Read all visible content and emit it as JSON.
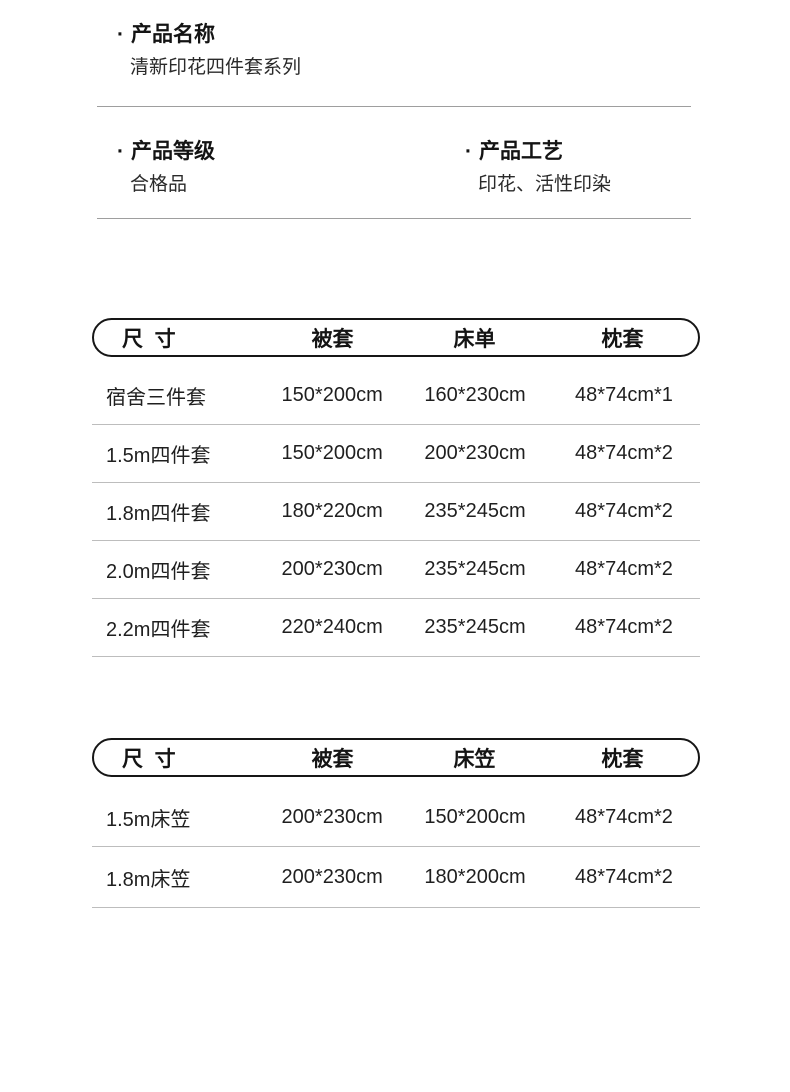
{
  "colors": {
    "page_bg": "#ffffff",
    "heading_text": "#141414",
    "body_text": "#2a2a2a",
    "table_border": "#161616",
    "section_divider": "#9e9e9e",
    "row_divider": "#bdbdbd"
  },
  "sections": {
    "product_name": {
      "bullet": "·",
      "label": "产品名称",
      "value": "清新印花四件套系列"
    },
    "product_grade": {
      "bullet": "·",
      "label": "产品等级",
      "value": "合格品"
    },
    "product_craft": {
      "bullet": "·",
      "label": "产品工艺",
      "value": "印花、活性印染"
    }
  },
  "size_table_1": {
    "headers": [
      "尺  寸",
      "被套",
      "床单",
      "枕套"
    ],
    "rows": [
      [
        "宿舍三件套",
        "150*200cm",
        "160*230cm",
        "48*74cm*1"
      ],
      [
        "1.5m四件套",
        "150*200cm",
        "200*230cm",
        "48*74cm*2"
      ],
      [
        "1.8m四件套",
        "180*220cm",
        "235*245cm",
        "48*74cm*2"
      ],
      [
        "2.0m四件套",
        "200*230cm",
        "235*245cm",
        "48*74cm*2"
      ],
      [
        "2.2m四件套",
        "220*240cm",
        "235*245cm",
        "48*74cm*2"
      ]
    ]
  },
  "size_table_2": {
    "headers": [
      "尺  寸",
      "被套",
      "床笠",
      "枕套"
    ],
    "rows": [
      [
        "1.5m床笠",
        "200*230cm",
        "150*200cm",
        "48*74cm*2"
      ],
      [
        "1.8m床笠",
        "200*230cm",
        "180*200cm",
        "48*74cm*2"
      ]
    ]
  }
}
